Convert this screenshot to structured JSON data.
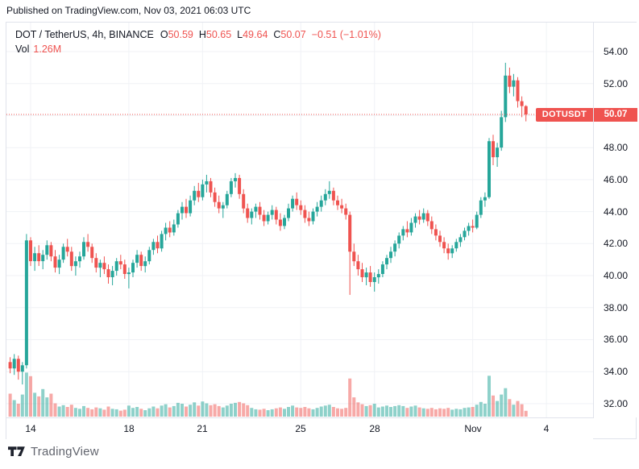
{
  "published_bar": {
    "text": "Published on TradingView.com, Nov 03, 2021 06:03 UTC"
  },
  "legend": {
    "symbol": "DOT / TetherUS, 4h, BINANCE",
    "items": [
      {
        "k": "O",
        "v": "50.59"
      },
      {
        "k": "H",
        "v": "50.65"
      },
      {
        "k": "L",
        "v": "49.64"
      },
      {
        "k": "C",
        "v": "50.07"
      }
    ],
    "change": "−0.51 (−1.01%)",
    "vol_label": "Vol",
    "vol_value": "1.26M"
  },
  "price_line": {
    "label": "DOTUSDT",
    "value": "50.07"
  },
  "footer": {
    "brand": "TradingView"
  },
  "colors": {
    "up": "#26a69a",
    "down": "#ef5350",
    "vol_up": "rgba(38,166,154,0.52)",
    "vol_down": "rgba(239,83,80,0.5)",
    "accent_red": "#ef5350",
    "grid": "#f0f2f6",
    "border": "#e0e3eb",
    "text": "#131722",
    "badge_text": "#ffffff"
  },
  "chart_data": {
    "type": "candlestick",
    "title": "DOT / TetherUS, 4h, BINANCE",
    "symbol": "DOTUSDT",
    "exchange": "BINANCE",
    "interval": "4h",
    "last_bar": {
      "open": 50.59,
      "high": 50.65,
      "low": 49.64,
      "close": 50.07,
      "change": -0.51,
      "change_pct": -1.01,
      "volume_label": "1.26M"
    },
    "price_line": 50.07,
    "start_time": "2021-10-13 04:00 UTC",
    "interval_hours": 4,
    "y_axis": {
      "min": 31.3,
      "max": 54.9,
      "tick_step": 2,
      "labeled_ticks": [
        54,
        52,
        48,
        46,
        44,
        42,
        40,
        38,
        36,
        34,
        32
      ],
      "grid_ticks": [
        54,
        52,
        50,
        48,
        46,
        44,
        42,
        40,
        38,
        36,
        34,
        32
      ]
    },
    "x_axis": {
      "ticks": [
        {
          "label": "14",
          "day": 0
        },
        {
          "label": "18",
          "day": 4
        },
        {
          "label": "21",
          "day": 7
        },
        {
          "label": "25",
          "day": 11
        },
        {
          "label": "28",
          "day": 14
        },
        {
          "label": "Nov",
          "day": 18
        },
        {
          "label": "4",
          "day": 21
        }
      ],
      "grid": true
    },
    "candles_format": [
      "open",
      "high",
      "low",
      "close",
      "volume_millions"
    ],
    "candles": [
      [
        34.6,
        34.9,
        33.9,
        34.2,
        5.0
      ],
      [
        34.2,
        35.1,
        33.8,
        34.8,
        3.6
      ],
      [
        34.8,
        35.0,
        33.5,
        34.0,
        2.8
      ],
      [
        34.0,
        34.6,
        33.2,
        34.4,
        4.8
      ],
      [
        34.4,
        42.6,
        34.2,
        42.2,
        9.6
      ],
      [
        42.2,
        42.4,
        40.6,
        40.9,
        8.8
      ],
      [
        40.9,
        41.8,
        40.3,
        41.4,
        5.2
      ],
      [
        41.4,
        41.9,
        40.6,
        40.9,
        4.4
      ],
      [
        40.9,
        41.6,
        40.4,
        41.3,
        6.0
      ],
      [
        41.3,
        42.2,
        41.0,
        41.9,
        4.2
      ],
      [
        41.9,
        42.1,
        40.9,
        41.2,
        5.0
      ],
      [
        41.2,
        41.6,
        40.2,
        40.5,
        2.9
      ],
      [
        40.5,
        41.3,
        40.1,
        41.0,
        2.2
      ],
      [
        41.0,
        42.0,
        40.8,
        41.8,
        2.5
      ],
      [
        41.8,
        42.3,
        41.2,
        41.5,
        2.1
      ],
      [
        41.5,
        41.8,
        40.3,
        40.6,
        2.6
      ],
      [
        40.6,
        41.2,
        40.0,
        40.9,
        1.9
      ],
      [
        40.9,
        41.5,
        40.5,
        41.2,
        1.7
      ],
      [
        41.2,
        42.4,
        41.0,
        42.1,
        2.3
      ],
      [
        42.1,
        42.6,
        41.5,
        41.8,
        1.9
      ],
      [
        41.8,
        42.0,
        40.8,
        41.1,
        1.6
      ],
      [
        41.1,
        41.4,
        40.2,
        40.5,
        2.0
      ],
      [
        40.5,
        41.0,
        39.9,
        40.8,
        1.8
      ],
      [
        40.8,
        41.2,
        40.1,
        40.4,
        1.5
      ],
      [
        40.4,
        40.7,
        39.5,
        39.9,
        2.2
      ],
      [
        39.9,
        40.6,
        39.4,
        40.3,
        1.7
      ],
      [
        40.3,
        41.1,
        40.0,
        40.9,
        1.6
      ],
      [
        40.9,
        41.3,
        40.4,
        40.7,
        1.3
      ],
      [
        40.7,
        41.0,
        39.8,
        40.1,
        1.5
      ],
      [
        40.1,
        40.5,
        39.2,
        40.2,
        2.4
      ],
      [
        40.2,
        41.0,
        39.9,
        40.8,
        1.9
      ],
      [
        40.8,
        41.6,
        40.5,
        41.3,
        2.1
      ],
      [
        41.3,
        41.5,
        40.3,
        40.6,
        1.7
      ],
      [
        40.6,
        41.2,
        40.2,
        40.9,
        1.4
      ],
      [
        40.9,
        41.8,
        40.7,
        41.6,
        1.8
      ],
      [
        41.6,
        42.3,
        41.3,
        42.1,
        2.2
      ],
      [
        42.1,
        42.5,
        41.4,
        41.7,
        1.8
      ],
      [
        41.7,
        42.8,
        41.5,
        42.6,
        2.4
      ],
      [
        42.6,
        43.3,
        42.2,
        43.0,
        2.7
      ],
      [
        43.0,
        43.4,
        42.4,
        42.7,
        2.0
      ],
      [
        42.7,
        43.5,
        42.5,
        43.2,
        2.3
      ],
      [
        43.2,
        44.1,
        43.0,
        43.9,
        3.0
      ],
      [
        43.9,
        44.6,
        43.5,
        44.3,
        2.8
      ],
      [
        44.3,
        44.8,
        43.6,
        43.9,
        2.2
      ],
      [
        43.9,
        45.0,
        43.7,
        44.7,
        2.6
      ],
      [
        44.7,
        45.6,
        44.4,
        45.3,
        3.1
      ],
      [
        45.3,
        45.8,
        44.6,
        44.9,
        2.4
      ],
      [
        44.9,
        46.0,
        44.7,
        45.7,
        3.3
      ],
      [
        45.7,
        46.3,
        45.2,
        45.9,
        2.9
      ],
      [
        45.9,
        46.1,
        44.9,
        45.2,
        2.5
      ],
      [
        45.2,
        45.5,
        44.3,
        44.6,
        2.7
      ],
      [
        44.6,
        45.0,
        43.9,
        44.2,
        2.3
      ],
      [
        44.2,
        44.6,
        43.6,
        44.4,
        2.0
      ],
      [
        44.4,
        45.3,
        44.2,
        45.1,
        2.4
      ],
      [
        45.1,
        46.1,
        44.9,
        45.9,
        2.8
      ],
      [
        45.9,
        46.4,
        45.5,
        46.1,
        3.0
      ],
      [
        46.1,
        46.3,
        44.8,
        45.1,
        3.2
      ],
      [
        45.1,
        45.4,
        43.9,
        44.2,
        2.9
      ],
      [
        44.2,
        44.5,
        43.3,
        43.6,
        2.5
      ],
      [
        43.6,
        44.2,
        43.2,
        44.0,
        1.9
      ],
      [
        44.0,
        44.5,
        43.6,
        44.3,
        1.6
      ],
      [
        44.3,
        44.6,
        43.5,
        43.8,
        1.5
      ],
      [
        43.8,
        44.1,
        43.1,
        43.4,
        1.7
      ],
      [
        43.4,
        44.0,
        43.2,
        43.8,
        1.4
      ],
      [
        43.8,
        44.4,
        43.5,
        44.1,
        1.6
      ],
      [
        44.1,
        44.3,
        43.2,
        43.5,
        1.8
      ],
      [
        43.5,
        43.9,
        42.8,
        43.1,
        2.0
      ],
      [
        43.1,
        43.8,
        42.9,
        43.6,
        1.7
      ],
      [
        43.6,
        44.5,
        43.4,
        44.2,
        2.1
      ],
      [
        44.2,
        45.0,
        44.0,
        44.8,
        2.4
      ],
      [
        44.8,
        45.2,
        44.1,
        44.4,
        2.0
      ],
      [
        44.4,
        44.7,
        43.8,
        44.1,
        1.9
      ],
      [
        44.1,
        44.4,
        43.3,
        43.6,
        2.1
      ],
      [
        43.6,
        44.0,
        43.1,
        43.4,
        1.8
      ],
      [
        43.4,
        44.2,
        43.2,
        44.0,
        1.6
      ],
      [
        44.0,
        44.6,
        43.7,
        44.3,
        1.9
      ],
      [
        44.3,
        45.0,
        44.0,
        44.7,
        2.2
      ],
      [
        44.7,
        45.4,
        44.4,
        45.1,
        2.4
      ],
      [
        45.1,
        45.9,
        44.8,
        45.3,
        2.6
      ],
      [
        45.3,
        45.5,
        44.4,
        44.7,
        2.1
      ],
      [
        44.7,
        45.0,
        44.1,
        44.4,
        1.8
      ],
      [
        44.4,
        44.8,
        43.9,
        44.2,
        1.7
      ],
      [
        44.2,
        44.5,
        43.5,
        43.8,
        1.9
      ],
      [
        43.8,
        44.0,
        38.8,
        41.5,
        8.3
      ],
      [
        41.5,
        42.0,
        40.6,
        40.9,
        4.2
      ],
      [
        40.9,
        41.3,
        40.0,
        40.4,
        3.1
      ],
      [
        40.4,
        40.8,
        39.6,
        39.9,
        2.7
      ],
      [
        39.9,
        40.5,
        39.4,
        40.2,
        2.3
      ],
      [
        40.2,
        40.6,
        39.3,
        39.6,
        2.5
      ],
      [
        39.6,
        40.2,
        39.0,
        39.9,
        2.8
      ],
      [
        39.9,
        40.4,
        39.5,
        40.1,
        2.0
      ],
      [
        40.1,
        40.9,
        39.9,
        40.7,
        2.2
      ],
      [
        40.7,
        41.3,
        40.4,
        41.1,
        2.4
      ],
      [
        41.1,
        41.8,
        40.8,
        41.5,
        2.1
      ],
      [
        41.5,
        42.2,
        41.2,
        42.0,
        2.3
      ],
      [
        42.0,
        42.7,
        41.7,
        42.5,
        2.5
      ],
      [
        42.5,
        43.1,
        42.2,
        42.9,
        2.3
      ],
      [
        42.9,
        43.4,
        42.4,
        42.7,
        1.9
      ],
      [
        42.7,
        43.6,
        42.5,
        43.3,
        2.2
      ],
      [
        43.3,
        43.9,
        43.0,
        43.7,
        2.4
      ],
      [
        43.7,
        44.1,
        43.2,
        43.5,
        2.0
      ],
      [
        43.5,
        44.2,
        43.3,
        43.9,
        1.8
      ],
      [
        43.9,
        44.1,
        43.1,
        43.4,
        1.7
      ],
      [
        43.4,
        43.7,
        42.6,
        42.9,
        1.9
      ],
      [
        42.9,
        43.2,
        42.2,
        42.5,
        1.6
      ],
      [
        42.5,
        42.8,
        41.8,
        42.1,
        1.8
      ],
      [
        42.1,
        42.4,
        41.4,
        41.7,
        1.7
      ],
      [
        41.7,
        42.0,
        41.0,
        41.4,
        1.9
      ],
      [
        41.4,
        41.9,
        41.1,
        41.7,
        1.5
      ],
      [
        41.7,
        42.3,
        41.5,
        42.1,
        1.7
      ],
      [
        42.1,
        42.6,
        41.8,
        42.4,
        1.6
      ],
      [
        42.4,
        43.0,
        42.2,
        42.8,
        1.9
      ],
      [
        42.8,
        43.3,
        42.5,
        43.1,
        2.0
      ],
      [
        43.1,
        43.5,
        42.7,
        43.0,
        2.1
      ],
      [
        43.0,
        44.0,
        42.9,
        43.8,
        2.6
      ],
      [
        43.8,
        44.9,
        43.6,
        44.7,
        3.2
      ],
      [
        44.7,
        45.2,
        44.3,
        44.9,
        2.8
      ],
      [
        44.9,
        48.6,
        44.8,
        48.4,
        8.9
      ],
      [
        48.4,
        48.8,
        46.9,
        47.4,
        4.6
      ],
      [
        47.4,
        48.3,
        46.8,
        48.0,
        3.4
      ],
      [
        48.0,
        50.3,
        47.8,
        49.9,
        4.8
      ],
      [
        49.9,
        53.3,
        49.6,
        52.5,
        6.2
      ],
      [
        52.5,
        53.0,
        51.4,
        51.8,
        3.8
      ],
      [
        51.8,
        52.6,
        51.2,
        52.2,
        2.6
      ],
      [
        52.2,
        52.4,
        50.5,
        50.9,
        3.4
      ],
      [
        50.9,
        51.2,
        49.9,
        50.6,
        2.7
      ],
      [
        50.59,
        50.65,
        49.64,
        50.07,
        1.26
      ]
    ]
  }
}
